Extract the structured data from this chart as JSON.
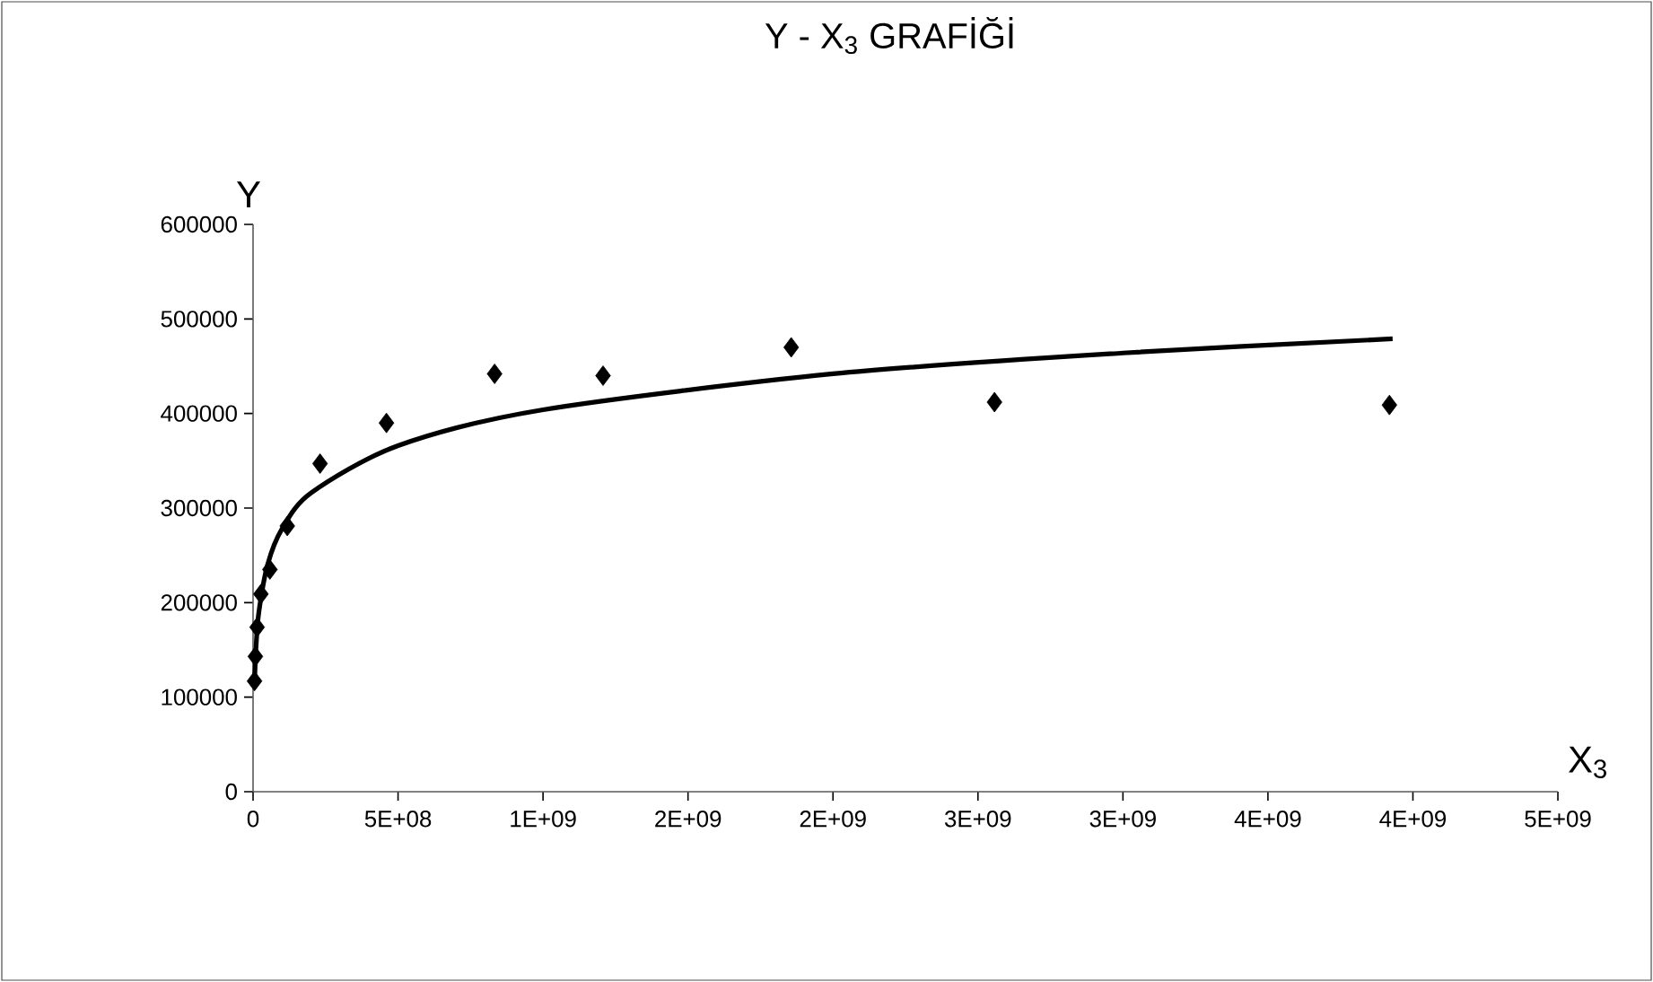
{
  "chart_data": {
    "type": "scatter",
    "title": "Y - X$_{3}$ GRAFİĞİ",
    "xlabel": "X$_{3}$",
    "ylabel": "Y",
    "series": [
      {
        "color": "#000000",
        "marker": "diamond",
        "x": [
          5000000,
          8000000,
          14000000,
          27000000,
          58000000,
          118000000,
          231000000,
          460000000,
          833000000,
          1207000000,
          1856000000,
          2557000000,
          3919000000
        ],
        "values": [
          117000,
          143000,
          174000,
          209000,
          235000,
          281000,
          347000,
          390000,
          442000,
          440000,
          470000,
          412000,
          409000
        ]
      },
      {
        "type": "line",
        "color": "#000000",
        "line_style": "solid",
        "x": [
          5000000,
          10000000,
          20000000,
          50000000,
          100000000,
          200000000,
          500000000,
          1000000000,
          2000000000,
          3000000000,
          3930000000
        ],
        "values": [
          114000,
          152000,
          190000,
          240000,
          278000,
          316000,
          366000,
          404000,
          442000,
          464000,
          479000
        ]
      }
    ],
    "xlim": [
      0,
      4500000000
    ],
    "ylim": [
      0,
      600000
    ],
    "xticks": [
      0,
      {
        "value": 500000000,
        "label": "5E+08"
      },
      {
        "value": 1000000000,
        "label": "1E+09"
      },
      {
        "value": 1500000000,
        "label": "2E+09"
      },
      {
        "value": 2000000000,
        "label": "2E+09"
      },
      {
        "value": 2500000000,
        "label": "3E+09"
      },
      {
        "value": 3000000000,
        "label": "3E+09"
      },
      {
        "value": 3500000000,
        "label": "4E+09"
      },
      {
        "value": 4000000000,
        "label": "4E+09"
      },
      {
        "value": 4500000000,
        "label": "5E+09"
      }
    ],
    "yticks": [
      0,
      100000,
      200000,
      300000,
      400000,
      500000,
      600000
    ],
    "grid": false
  }
}
